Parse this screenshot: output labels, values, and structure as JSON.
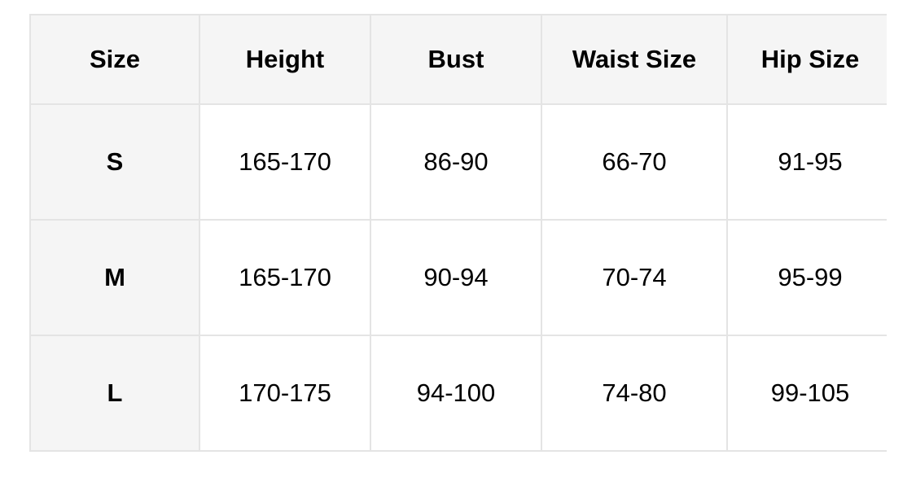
{
  "table": {
    "headers": [
      "Size",
      "Height",
      "Bust",
      "Waist Size",
      "Hip Size"
    ],
    "rows": [
      [
        "S",
        "165-170",
        "86-90",
        "66-70",
        "91-95"
      ],
      [
        "M",
        "165-170",
        "90-94",
        "70-74",
        "95-99"
      ],
      [
        "L",
        "170-175",
        "94-100",
        "74-80",
        "99-105"
      ]
    ]
  }
}
